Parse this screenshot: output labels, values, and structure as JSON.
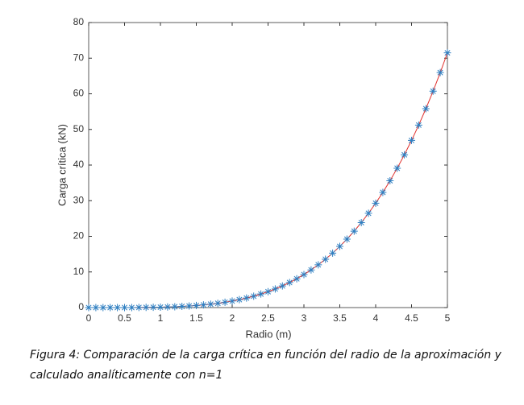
{
  "chart_data": {
    "type": "line",
    "xlabel": "Radio (m)",
    "ylabel": "Carga crítica (kN)",
    "caption": [
      "Figura 4:  Comparación de la carga crítica en función del radio de la aproximación y",
      "calculado analíticamente con n=1"
    ],
    "x": [
      0,
      0.1,
      0.2,
      0.3,
      0.4,
      0.5,
      0.6,
      0.7,
      0.8,
      0.9,
      1.0,
      1.1,
      1.2,
      1.3,
      1.4,
      1.5,
      1.6,
      1.7,
      1.8,
      1.9,
      2.0,
      2.1,
      2.2,
      2.3,
      2.4,
      2.5,
      2.6,
      2.7,
      2.8,
      2.9,
      3.0,
      3.1,
      3.2,
      3.3,
      3.4,
      3.5,
      3.6,
      3.7,
      3.8,
      3.9,
      4.0,
      4.1,
      4.2,
      4.3,
      4.4,
      4.5,
      4.6,
      4.7,
      4.8,
      4.9,
      5.0
    ],
    "series": [
      {
        "color": "#2f7fc1",
        "line_color": "#e0302c",
        "marker": "asterisk",
        "values": [
          0,
          0.0,
          0.0,
          0.0,
          0.0,
          0.01,
          0.01,
          0.03,
          0.05,
          0.08,
          0.11,
          0.17,
          0.24,
          0.33,
          0.44,
          0.58,
          0.75,
          0.96,
          1.2,
          1.49,
          1.83,
          2.22,
          2.68,
          3.2,
          3.8,
          4.47,
          5.23,
          6.08,
          7.03,
          8.09,
          9.27,
          10.57,
          12.0,
          13.57,
          15.29,
          17.17,
          19.21,
          21.44,
          23.85,
          26.47,
          29.29,
          32.33,
          35.6,
          39.11,
          42.88,
          46.91,
          51.22,
          55.82,
          60.73,
          65.95,
          71.5
        ]
      }
    ],
    "xlim": [
      0,
      5
    ],
    "xticks": [
      0,
      0.5,
      1,
      1.5,
      2,
      2.5,
      3,
      3.5,
      4,
      4.5,
      5
    ],
    "ylim": [
      0,
      80
    ],
    "yticks": [
      0,
      10,
      20,
      30,
      40,
      50,
      60,
      70,
      80
    ],
    "grid": false
  }
}
